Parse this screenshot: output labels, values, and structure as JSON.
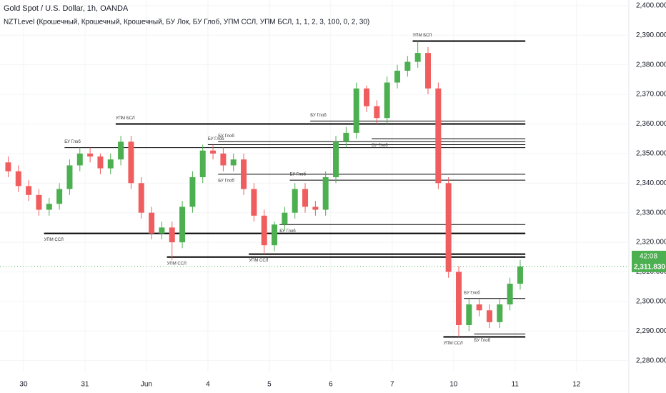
{
  "chart_data": {
    "type": "candlestick",
    "title": "Gold Spot / U.S. Dollar, 1h, OANDA",
    "subtitle": "NZTLevel (Крошечный, Крошечный, Крошечный, БУ Лок, БУ Глоб, УПМ ССЛ, УПМ БСЛ, 1, 1, 2, 3, 100, 0, 2, 30)",
    "up_color": "#4caf50",
    "down_color": "#f05d5e",
    "open": [
      2347,
      2344,
      2339,
      2336,
      2331,
      2333,
      2338,
      2346,
      2350,
      2349,
      2345,
      2348,
      2354,
      2340,
      2330,
      2323,
      2325,
      2320,
      2332,
      2342,
      2351,
      2350,
      2346,
      2348,
      2338,
      2329,
      2319,
      2326,
      2330,
      2338,
      2332,
      2331,
      2342,
      2354,
      2357,
      2372,
      2366,
      2362,
      2374,
      2378,
      2381,
      2384,
      2372,
      2340,
      2310,
      2292,
      2299,
      2297,
      2293,
      2299,
      2306
    ],
    "high": [
      2349,
      2346,
      2341,
      2338,
      2335,
      2340,
      2348,
      2352,
      2352,
      2350,
      2350,
      2356,
      2356,
      2342,
      2332,
      2327,
      2327,
      2334,
      2344,
      2353,
      2353,
      2352,
      2350,
      2350,
      2340,
      2331,
      2327,
      2332,
      2340,
      2340,
      2334,
      2344,
      2356,
      2359,
      2374,
      2373,
      2368,
      2376,
      2380,
      2383,
      2388,
      2386,
      2374,
      2342,
      2312,
      2301,
      2301,
      2299,
      2301,
      2308,
      2314
    ],
    "low": [
      2342,
      2337,
      2334,
      2329,
      2329,
      2331,
      2336,
      2344,
      2347,
      2343,
      2343,
      2346,
      2338,
      2328,
      2321,
      2321,
      2314,
      2318,
      2330,
      2340,
      2348,
      2344,
      2344,
      2336,
      2327,
      2316,
      2317,
      2324,
      2328,
      2330,
      2329,
      2329,
      2340,
      2352,
      2355,
      2364,
      2360,
      2360,
      2372,
      2376,
      2379,
      2370,
      2338,
      2308,
      2288,
      2290,
      2295,
      2291,
      2291,
      2297,
      2304
    ],
    "close": [
      2344,
      2339,
      2336,
      2331,
      2333,
      2338,
      2346,
      2350,
      2349,
      2345,
      2348,
      2354,
      2340,
      2330,
      2323,
      2325,
      2320,
      2332,
      2342,
      2351,
      2350,
      2346,
      2348,
      2338,
      2329,
      2319,
      2326,
      2330,
      2338,
      2332,
      2331,
      2342,
      2354,
      2357,
      2372,
      2366,
      2362,
      2374,
      2378,
      2381,
      2384,
      2372,
      2340,
      2310,
      2292,
      2299,
      2297,
      2293,
      2299,
      2306,
      2311.83
    ],
    "levels": [
      {
        "value": 2388,
        "start": 40,
        "label": "УПМ БСЛ",
        "label_side": "above",
        "style": "thick"
      },
      {
        "value": 2360,
        "start": 11,
        "label": "УПМ БСЛ",
        "label_side": "above",
        "style": "thick"
      },
      {
        "value": 2352,
        "start": 6,
        "label": "БУ Глоб",
        "label_side": "above",
        "style": "thin"
      },
      {
        "value": 2353,
        "start": 20,
        "label": "БУ Глоб",
        "label_side": "above",
        "style": "thin"
      },
      {
        "value": 2354,
        "start": 21,
        "label": "БУ Глоб",
        "label_side": "above",
        "style": "thin"
      },
      {
        "value": 2361,
        "start": 30,
        "label": "БУ Глоб",
        "label_side": "above",
        "style": "thin"
      },
      {
        "value": 2355,
        "start": 36,
        "label": "БУ Глоб",
        "label_side": "below",
        "style": "thin"
      },
      {
        "value": 2343,
        "start": 21,
        "label": "БУ Глоб",
        "label_side": "below",
        "style": "thin"
      },
      {
        "value": 2341,
        "start": 28,
        "label": "БУ Глоб",
        "label_side": "above",
        "style": "thin"
      },
      {
        "value": 2326,
        "start": 27,
        "label": "БУ Глоб",
        "label_side": "below",
        "style": "thin"
      },
      {
        "value": 2323,
        "start": 4,
        "label": "УПМ ССЛ",
        "label_side": "below",
        "style": "thick"
      },
      {
        "value": 2316,
        "start": 24,
        "label": "УПМ ССЛ",
        "label_side": "below",
        "style": "thick"
      },
      {
        "value": 2315,
        "start": 16,
        "label": "УПМ ССЛ",
        "label_side": "below",
        "style": "thick"
      },
      {
        "value": 2301,
        "start": 45,
        "label": "БУ Глоб",
        "label_side": "above",
        "style": "thin"
      },
      {
        "value": 2289,
        "start": 46,
        "label": "БУ Глоб",
        "label_side": "below",
        "style": "thin"
      },
      {
        "value": 2288,
        "start": 43,
        "label": "УПМ ССЛ",
        "label_side": "below",
        "style": "thick"
      }
    ],
    "last_price": {
      "value": 2311.83,
      "label": "2,311.830"
    },
    "countdown": "42:08",
    "ylim": [
      2276.3,
      2401.9
    ],
    "yticks": [
      {
        "value": 2280,
        "label": "2,280.000"
      },
      {
        "value": 2290,
        "label": "2,290.000"
      },
      {
        "value": 2300,
        "label": "2,300.000"
      },
      {
        "value": 2310,
        "label": "2,310.000"
      },
      {
        "value": 2320,
        "label": "2,320.000"
      },
      {
        "value": 2330,
        "label": "2,330.000"
      },
      {
        "value": 2340,
        "label": "2,340.000"
      },
      {
        "value": 2350,
        "label": "2,350.000"
      },
      {
        "value": 2360,
        "label": "2,360.000"
      },
      {
        "value": 2370,
        "label": "2,370.000"
      },
      {
        "value": 2380,
        "label": "2,380.000"
      },
      {
        "value": 2390,
        "label": "2,390.000"
      },
      {
        "value": 2400,
        "label": "2,400.000"
      }
    ],
    "xticks": [
      {
        "value": 2,
        "label": "30"
      },
      {
        "value": 8,
        "label": "31"
      },
      {
        "value": 14,
        "label": "Jun"
      },
      {
        "value": 20,
        "label": "4"
      },
      {
        "value": 26,
        "label": "5"
      },
      {
        "value": 32,
        "label": "6"
      },
      {
        "value": 38,
        "label": "7"
      },
      {
        "value": 44,
        "label": "10"
      },
      {
        "value": 50,
        "label": "11"
      },
      {
        "value": 56,
        "label": "12"
      }
    ]
  }
}
